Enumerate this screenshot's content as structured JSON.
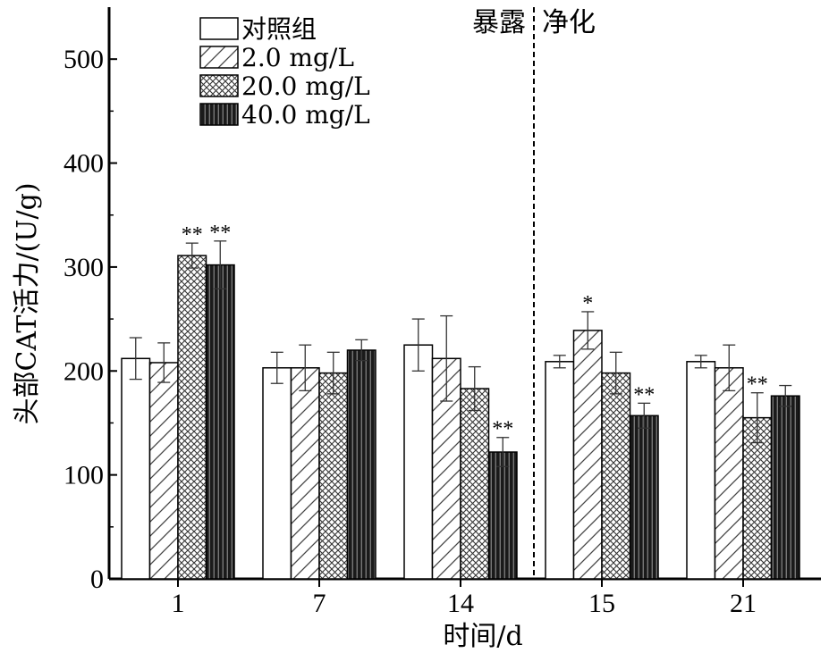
{
  "chart_data": {
    "type": "bar",
    "title": "",
    "xlabel": "时间/d",
    "ylabel": "头部CAT活力/(U/g)",
    "ylim": [
      0,
      550
    ],
    "yticks": [
      0,
      100,
      200,
      300,
      400,
      500
    ],
    "categories": [
      "1",
      "7",
      "14",
      "15",
      "21"
    ],
    "series": [
      {
        "name": "对照组",
        "pattern": "plain",
        "values": [
          212,
          203,
          225,
          209,
          209
        ],
        "errors": [
          20,
          15,
          25,
          6,
          6
        ],
        "sig": [
          "",
          "",
          "",
          "",
          ""
        ]
      },
      {
        "name": "2.0 mg/L",
        "pattern": "hatch",
        "values": [
          208,
          203,
          212,
          239,
          203
        ],
        "errors": [
          19,
          22,
          41,
          18,
          22
        ],
        "sig": [
          "",
          "",
          "",
          "*",
          ""
        ]
      },
      {
        "name": "20.0 mg/L",
        "pattern": "cross",
        "values": [
          311,
          198,
          183,
          198,
          155
        ],
        "errors": [
          12,
          20,
          21,
          20,
          24
        ],
        "sig": [
          "**",
          "",
          "",
          "",
          "**"
        ]
      },
      {
        "name": "40.0 mg/L",
        "pattern": "dark",
        "values": [
          302,
          220,
          122,
          157,
          176
        ],
        "errors": [
          23,
          10,
          14,
          12,
          10
        ],
        "sig": [
          "**",
          "",
          "**",
          "**",
          ""
        ]
      }
    ],
    "phase_labels": {
      "before": "暴露",
      "after": "净化"
    },
    "legend_position": "top-left",
    "grid": false
  }
}
